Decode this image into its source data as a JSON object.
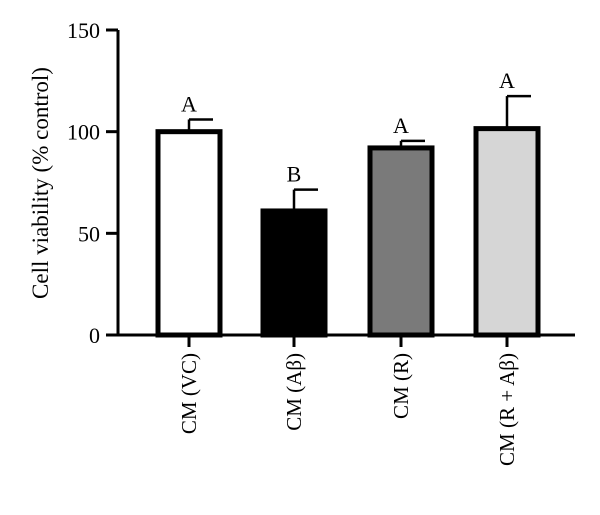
{
  "chart_data": {
    "type": "bar",
    "title": "",
    "xlabel": "",
    "ylabel": "Cell viability (% control)",
    "ylim": [
      0,
      150
    ],
    "yticks": [
      0,
      50,
      100,
      150
    ],
    "grid": false,
    "categories": [
      "CM (VC)",
      "CM (Aβ)",
      "CM (R)",
      "CM (R + Aβ)"
    ],
    "values": [
      100,
      61,
      92,
      101.5
    ],
    "errors": [
      6,
      10.5,
      3.5,
      16
    ],
    "significance": [
      "A",
      "B",
      "A",
      "A"
    ],
    "colors": [
      "#ffffff",
      "#000000",
      "#7a7a7a",
      "#d6d6d6"
    ]
  }
}
